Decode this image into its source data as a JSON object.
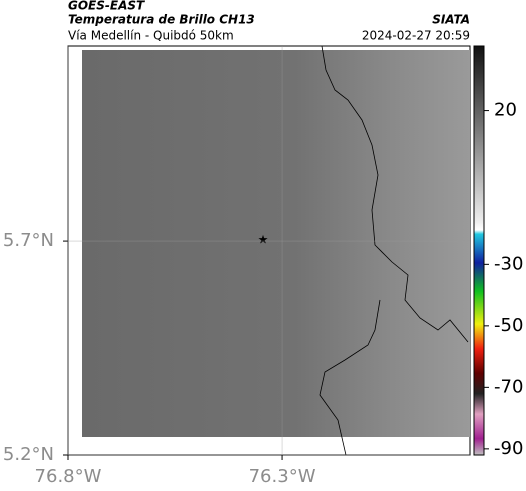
{
  "header": {
    "source": "GOES-EAST",
    "title": "Temperatura de Brillo CH13",
    "credit": "SIATA",
    "subtitle": "Vía Medellín - Quibdó 50km",
    "timestamp": "2024-02-27 20:59"
  },
  "map": {
    "latlim": [
      5.2,
      6.156
    ],
    "lonlim": [
      -76.8,
      -75.861
    ],
    "latticks": [
      {
        "value": 5.7,
        "label": "5.7°N"
      },
      {
        "value": 5.2,
        "label": "5.2°N"
      }
    ],
    "lonticks": [
      {
        "value": -76.8,
        "label": "76.8°W"
      },
      {
        "value": -76.3,
        "label": "76.3°W"
      }
    ],
    "grid": true
  },
  "colorbar": {
    "lim": [
      41,
      -92
    ],
    "ticks": [
      20,
      -30,
      -50,
      -70,
      -90
    ]
  }
}
